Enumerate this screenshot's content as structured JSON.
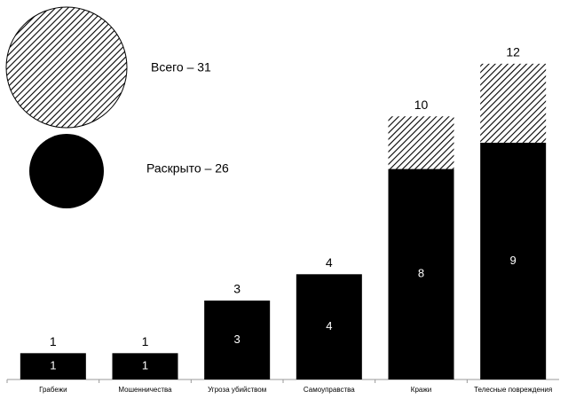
{
  "chart_data": {
    "type": "stacked_bar",
    "categories": [
      "Грабежи",
      "Мошенничества",
      "Угроза убийством",
      "Самоуправства",
      "Кражи",
      "Телесные повреждения"
    ],
    "totals": [
      1,
      1,
      3,
      4,
      10,
      12
    ],
    "series": [
      {
        "name": "Раскрыто – 26",
        "color": "#000000",
        "values": [
          1,
          1,
          3,
          4,
          8,
          9
        ]
      },
      {
        "name": "Всего – 31",
        "color": "hatch",
        "values": [
          0,
          0,
          0,
          0,
          2,
          3
        ]
      }
    ],
    "ylim": [
      0,
      12.4
    ],
    "grid": false
  }
}
